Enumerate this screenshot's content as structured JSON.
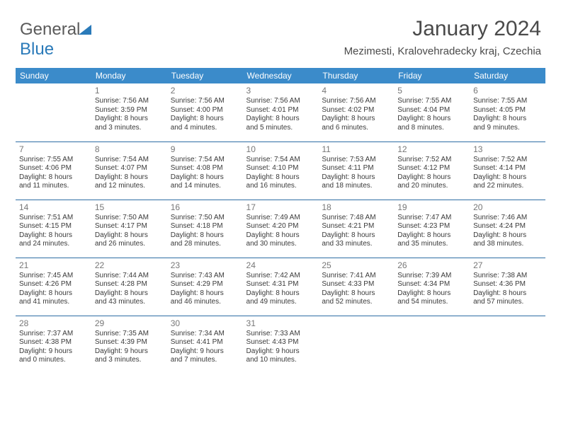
{
  "logo": {
    "part1": "General",
    "part2": "Blue"
  },
  "header": {
    "month": "January 2024",
    "location": "Mezimesti, Kralovehradecky kraj, Czechia"
  },
  "colors": {
    "header_bg": "#3b8bca",
    "header_text": "#ffffff",
    "row_divider": "#2e6da4",
    "text": "#3a3a3a",
    "daynum": "#777777",
    "logo_gray": "#5a5a5a",
    "logo_blue": "#2a7ab9"
  },
  "weekdays": [
    "Sunday",
    "Monday",
    "Tuesday",
    "Wednesday",
    "Thursday",
    "Friday",
    "Saturday"
  ],
  "cells": [
    [
      null,
      {
        "day": "1",
        "sunrise": "Sunrise: 7:56 AM",
        "sunset": "Sunset: 3:59 PM",
        "daylight1": "Daylight: 8 hours",
        "daylight2": "and 3 minutes."
      },
      {
        "day": "2",
        "sunrise": "Sunrise: 7:56 AM",
        "sunset": "Sunset: 4:00 PM",
        "daylight1": "Daylight: 8 hours",
        "daylight2": "and 4 minutes."
      },
      {
        "day": "3",
        "sunrise": "Sunrise: 7:56 AM",
        "sunset": "Sunset: 4:01 PM",
        "daylight1": "Daylight: 8 hours",
        "daylight2": "and 5 minutes."
      },
      {
        "day": "4",
        "sunrise": "Sunrise: 7:56 AM",
        "sunset": "Sunset: 4:02 PM",
        "daylight1": "Daylight: 8 hours",
        "daylight2": "and 6 minutes."
      },
      {
        "day": "5",
        "sunrise": "Sunrise: 7:55 AM",
        "sunset": "Sunset: 4:04 PM",
        "daylight1": "Daylight: 8 hours",
        "daylight2": "and 8 minutes."
      },
      {
        "day": "6",
        "sunrise": "Sunrise: 7:55 AM",
        "sunset": "Sunset: 4:05 PM",
        "daylight1": "Daylight: 8 hours",
        "daylight2": "and 9 minutes."
      }
    ],
    [
      {
        "day": "7",
        "sunrise": "Sunrise: 7:55 AM",
        "sunset": "Sunset: 4:06 PM",
        "daylight1": "Daylight: 8 hours",
        "daylight2": "and 11 minutes."
      },
      {
        "day": "8",
        "sunrise": "Sunrise: 7:54 AM",
        "sunset": "Sunset: 4:07 PM",
        "daylight1": "Daylight: 8 hours",
        "daylight2": "and 12 minutes."
      },
      {
        "day": "9",
        "sunrise": "Sunrise: 7:54 AM",
        "sunset": "Sunset: 4:08 PM",
        "daylight1": "Daylight: 8 hours",
        "daylight2": "and 14 minutes."
      },
      {
        "day": "10",
        "sunrise": "Sunrise: 7:54 AM",
        "sunset": "Sunset: 4:10 PM",
        "daylight1": "Daylight: 8 hours",
        "daylight2": "and 16 minutes."
      },
      {
        "day": "11",
        "sunrise": "Sunrise: 7:53 AM",
        "sunset": "Sunset: 4:11 PM",
        "daylight1": "Daylight: 8 hours",
        "daylight2": "and 18 minutes."
      },
      {
        "day": "12",
        "sunrise": "Sunrise: 7:52 AM",
        "sunset": "Sunset: 4:12 PM",
        "daylight1": "Daylight: 8 hours",
        "daylight2": "and 20 minutes."
      },
      {
        "day": "13",
        "sunrise": "Sunrise: 7:52 AM",
        "sunset": "Sunset: 4:14 PM",
        "daylight1": "Daylight: 8 hours",
        "daylight2": "and 22 minutes."
      }
    ],
    [
      {
        "day": "14",
        "sunrise": "Sunrise: 7:51 AM",
        "sunset": "Sunset: 4:15 PM",
        "daylight1": "Daylight: 8 hours",
        "daylight2": "and 24 minutes."
      },
      {
        "day": "15",
        "sunrise": "Sunrise: 7:50 AM",
        "sunset": "Sunset: 4:17 PM",
        "daylight1": "Daylight: 8 hours",
        "daylight2": "and 26 minutes."
      },
      {
        "day": "16",
        "sunrise": "Sunrise: 7:50 AM",
        "sunset": "Sunset: 4:18 PM",
        "daylight1": "Daylight: 8 hours",
        "daylight2": "and 28 minutes."
      },
      {
        "day": "17",
        "sunrise": "Sunrise: 7:49 AM",
        "sunset": "Sunset: 4:20 PM",
        "daylight1": "Daylight: 8 hours",
        "daylight2": "and 30 minutes."
      },
      {
        "day": "18",
        "sunrise": "Sunrise: 7:48 AM",
        "sunset": "Sunset: 4:21 PM",
        "daylight1": "Daylight: 8 hours",
        "daylight2": "and 33 minutes."
      },
      {
        "day": "19",
        "sunrise": "Sunrise: 7:47 AM",
        "sunset": "Sunset: 4:23 PM",
        "daylight1": "Daylight: 8 hours",
        "daylight2": "and 35 minutes."
      },
      {
        "day": "20",
        "sunrise": "Sunrise: 7:46 AM",
        "sunset": "Sunset: 4:24 PM",
        "daylight1": "Daylight: 8 hours",
        "daylight2": "and 38 minutes."
      }
    ],
    [
      {
        "day": "21",
        "sunrise": "Sunrise: 7:45 AM",
        "sunset": "Sunset: 4:26 PM",
        "daylight1": "Daylight: 8 hours",
        "daylight2": "and 41 minutes."
      },
      {
        "day": "22",
        "sunrise": "Sunrise: 7:44 AM",
        "sunset": "Sunset: 4:28 PM",
        "daylight1": "Daylight: 8 hours",
        "daylight2": "and 43 minutes."
      },
      {
        "day": "23",
        "sunrise": "Sunrise: 7:43 AM",
        "sunset": "Sunset: 4:29 PM",
        "daylight1": "Daylight: 8 hours",
        "daylight2": "and 46 minutes."
      },
      {
        "day": "24",
        "sunrise": "Sunrise: 7:42 AM",
        "sunset": "Sunset: 4:31 PM",
        "daylight1": "Daylight: 8 hours",
        "daylight2": "and 49 minutes."
      },
      {
        "day": "25",
        "sunrise": "Sunrise: 7:41 AM",
        "sunset": "Sunset: 4:33 PM",
        "daylight1": "Daylight: 8 hours",
        "daylight2": "and 52 minutes."
      },
      {
        "day": "26",
        "sunrise": "Sunrise: 7:39 AM",
        "sunset": "Sunset: 4:34 PM",
        "daylight1": "Daylight: 8 hours",
        "daylight2": "and 54 minutes."
      },
      {
        "day": "27",
        "sunrise": "Sunrise: 7:38 AM",
        "sunset": "Sunset: 4:36 PM",
        "daylight1": "Daylight: 8 hours",
        "daylight2": "and 57 minutes."
      }
    ],
    [
      {
        "day": "28",
        "sunrise": "Sunrise: 7:37 AM",
        "sunset": "Sunset: 4:38 PM",
        "daylight1": "Daylight: 9 hours",
        "daylight2": "and 0 minutes."
      },
      {
        "day": "29",
        "sunrise": "Sunrise: 7:35 AM",
        "sunset": "Sunset: 4:39 PM",
        "daylight1": "Daylight: 9 hours",
        "daylight2": "and 3 minutes."
      },
      {
        "day": "30",
        "sunrise": "Sunrise: 7:34 AM",
        "sunset": "Sunset: 4:41 PM",
        "daylight1": "Daylight: 9 hours",
        "daylight2": "and 7 minutes."
      },
      {
        "day": "31",
        "sunrise": "Sunrise: 7:33 AM",
        "sunset": "Sunset: 4:43 PM",
        "daylight1": "Daylight: 9 hours",
        "daylight2": "and 10 minutes."
      },
      null,
      null,
      null
    ]
  ]
}
